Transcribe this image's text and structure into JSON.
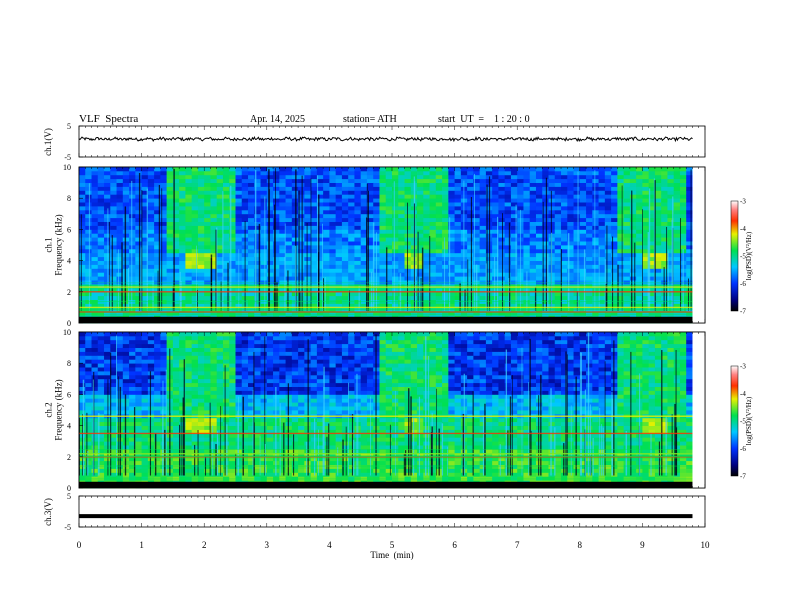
{
  "header": {
    "title": "VLF  Spectra",
    "date": "Apr. 14, 2025",
    "station": "station= ATH",
    "start_ut": "start  UT  =    1 : 20 : 0"
  },
  "chart_data": [
    {
      "type": "line",
      "panel": "ch1-waveform",
      "ylabel": "ch.1(V)",
      "ylim": [
        -5,
        5
      ],
      "y_ticks": [
        "5",
        "-5"
      ],
      "xlim": [
        0,
        10
      ],
      "approx_level_v": 0.8,
      "approx_amplitude_v": 0.6,
      "color": "#000000"
    },
    {
      "type": "heatmap",
      "panel": "ch1-spectrogram",
      "ylabel": "ch.1\nFrequency (kHz)",
      "ylim": [
        0,
        10
      ],
      "y_ticks": [
        "0",
        "2",
        "4",
        "6",
        "8",
        "10"
      ],
      "xlim": [
        0,
        10
      ],
      "colorbar": {
        "label": "log(PSD)(V²/Hz)",
        "ticks": [
          "-3",
          "-4",
          "-5",
          "-6",
          "-7"
        ],
        "range": [
          -7,
          -3
        ]
      },
      "bright_patches_min": [
        [
          1.75,
          2.15
        ],
        [
          5.2,
          5.55
        ],
        [
          9.0,
          9.4
        ]
      ],
      "patch_band_khz": [
        3.6,
        4.4
      ],
      "strong_lines_khz": [
        0.1,
        0.3,
        0.7,
        1.0,
        2.0,
        2.3
      ]
    },
    {
      "type": "heatmap",
      "panel": "ch2-spectrogram",
      "ylabel": "ch.2\nFrequency (kHz)",
      "ylim": [
        0,
        10
      ],
      "y_ticks": [
        "0",
        "2",
        "4",
        "6",
        "8",
        "10"
      ],
      "xlim": [
        0,
        10
      ],
      "colorbar": {
        "label": "log(PSD)(V²/Hz)",
        "ticks": [
          "-3",
          "-4",
          "-5",
          "-6",
          "-7"
        ],
        "range": [
          -7,
          -3
        ]
      },
      "bright_patches_min": [
        [
          1.75,
          2.15
        ],
        [
          5.2,
          5.55
        ],
        [
          9.0,
          9.4
        ]
      ],
      "patch_band_khz": [
        3.6,
        4.4
      ],
      "strong_lines_khz": [
        0.1,
        0.3,
        2.0,
        2.2,
        3.5,
        4.6
      ]
    },
    {
      "type": "line",
      "panel": "ch3-waveform",
      "ylabel": "ch.3(V)",
      "ylim": [
        -5,
        5
      ],
      "y_ticks": [
        "5",
        "-5"
      ],
      "xlim": [
        0,
        10
      ],
      "approx_level_v": -1.5,
      "color": "#000000"
    }
  ],
  "xaxis": {
    "label": "Time  (min)",
    "ticks": [
      "0",
      "1",
      "2",
      "3",
      "4",
      "5",
      "6",
      "7",
      "8",
      "9",
      "10"
    ]
  }
}
